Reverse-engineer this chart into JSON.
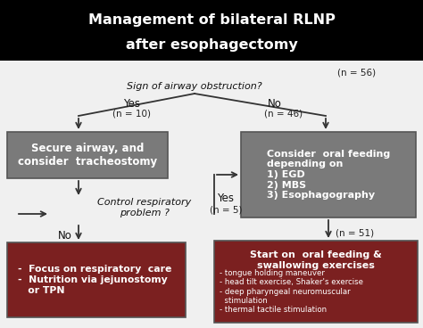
{
  "title_line1": "Management of bilateral RLNP",
  "title_line2": "after esophagectomy",
  "title_bg": "#000000",
  "title_fg": "#ffffff",
  "bg_color": "#f0f0f0",
  "decision_text": "Sign of airway obstruction?",
  "n56": "(n = 56)",
  "yes_label": "Yes",
  "no_label": "No",
  "n10": "(n = 10)",
  "n46": "(n = 46)",
  "box1_text": "Secure airway, and\nconsider  tracheostomy",
  "box1_bg": "#7a7a7a",
  "box1_fg": "#ffffff",
  "box2_text": "Consider  oral feeding\ndepending on\n1) EGD\n2) MBS\n3) Esophagography",
  "box2_bg": "#7a7a7a",
  "box2_fg": "#ffffff",
  "control_text": "Control respiratory\nproblem ?",
  "yes2_label": "Yes",
  "n5": "(n = 5)",
  "no2_label": "No",
  "n51": "(n = 51)",
  "box3_text": "-  Focus on respiratory  care\n-  Nutrition via jejunostomy\n   or TPN",
  "box3_bg": "#7b2020",
  "box3_fg": "#ffffff",
  "box4_title": "Start on  oral feeding &\nswallowing exercises",
  "box4_text": "- tongue holding maneuver\n- head tilt exercise, Shaker's exercise\n- deep pharyngeal neuromuscular\n  stimulation\n- thermal tactile stimulation",
  "box4_bg": "#7b2020",
  "box4_fg": "#ffffff",
  "arrow_color": "#333333",
  "border_color": "#555555"
}
